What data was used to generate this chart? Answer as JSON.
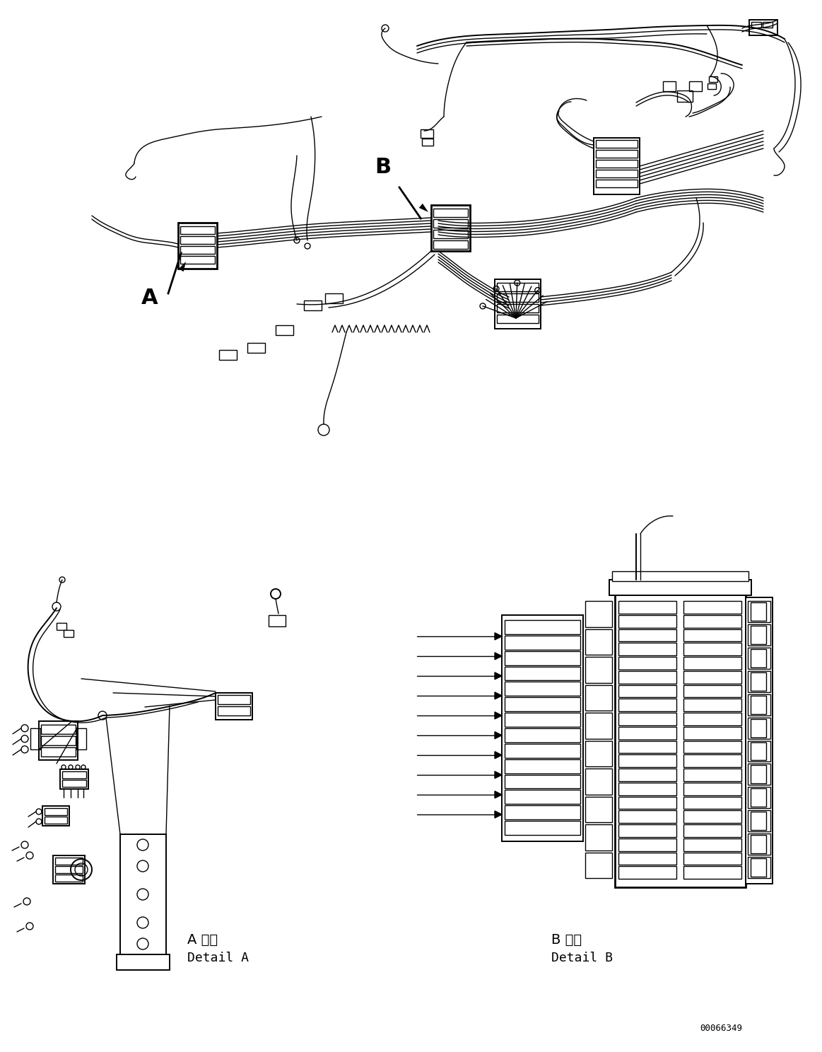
{
  "bg_color": "#ffffff",
  "line_color": "#000000",
  "figure_width": 11.63,
  "figure_height": 14.88,
  "dpi": 100,
  "part_number": "00066349",
  "label_A": "A",
  "label_B": "B",
  "detail_A_jp": "A 詳細",
  "detail_A_en": "Detail A",
  "detail_B_jp": "B 詳細",
  "detail_B_en": "Detail B",
  "font_size_labels": 22,
  "font_size_detail": 13,
  "font_size_partnumber": 9
}
